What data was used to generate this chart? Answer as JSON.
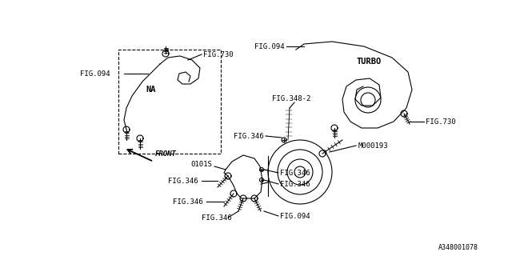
{
  "bg_color": "#ffffff",
  "line_color": "#000000",
  "title": "",
  "part_id": "A348001078",
  "labels": {
    "FIG094_left": "FIG.094",
    "FIG730_top": "FIG.730",
    "NA": "NA",
    "FIG094_right": "FIG.094",
    "TURBO": "TURBO",
    "FIG730_right": "FIG.730",
    "FIG348_2": "FIG.348-2",
    "M000193": "M000193",
    "FIG346_1": "FIG.346",
    "FIG346_2": "FIG.346",
    "FIG346_3": "FIG.346",
    "FIG346_4": "FIG.346",
    "FIG346_5": "FIG.346",
    "FIG346_6": "FIG.346",
    "FIG094_bot": "FIG.094",
    "0101S": "0101S",
    "FRONT": "FRONT"
  },
  "font_size": 6.5,
  "line_width": 0.8
}
